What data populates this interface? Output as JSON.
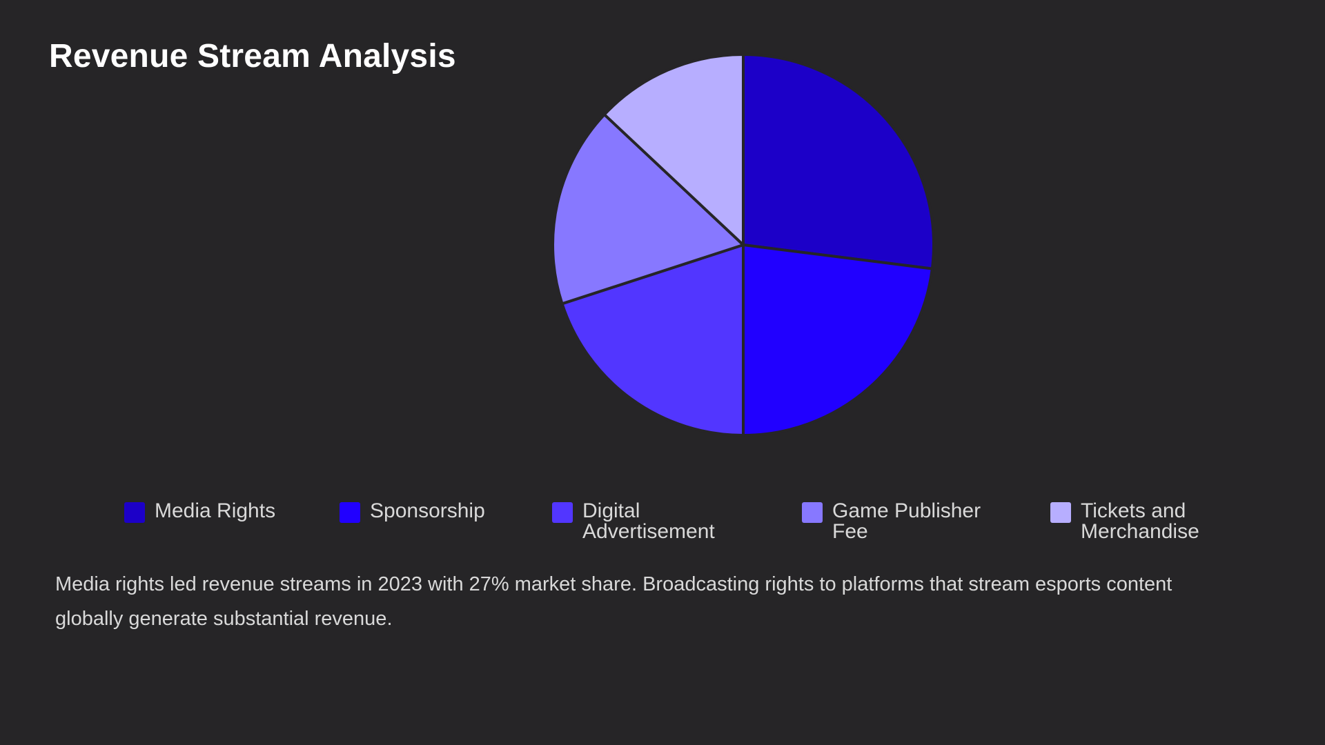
{
  "title": "Revenue Stream Analysis",
  "description": "Media rights led revenue streams in 2023 with 27% market share. Broadcasting rights to platforms that stream esports content globally generate substantial revenue.",
  "chart_data": {
    "type": "pie",
    "title": "Revenue Stream Analysis",
    "start_angle_deg": 0,
    "direction": "clockwise",
    "legend_position": "bottom",
    "slices": [
      {
        "label": "Media Rights",
        "value": 27,
        "color": "#1c00c8"
      },
      {
        "label": "Sponsorship",
        "value": 23,
        "color": "#2100ff"
      },
      {
        "label": "Digital Advertisement",
        "value": 20,
        "color": "#5236ff"
      },
      {
        "label": "Game Publisher Fee",
        "value": 17,
        "color": "#8778ff"
      },
      {
        "label": "Tickets and Merchandise",
        "value": 13,
        "color": "#b7aeff"
      }
    ],
    "slice_stroke": "#262527"
  }
}
